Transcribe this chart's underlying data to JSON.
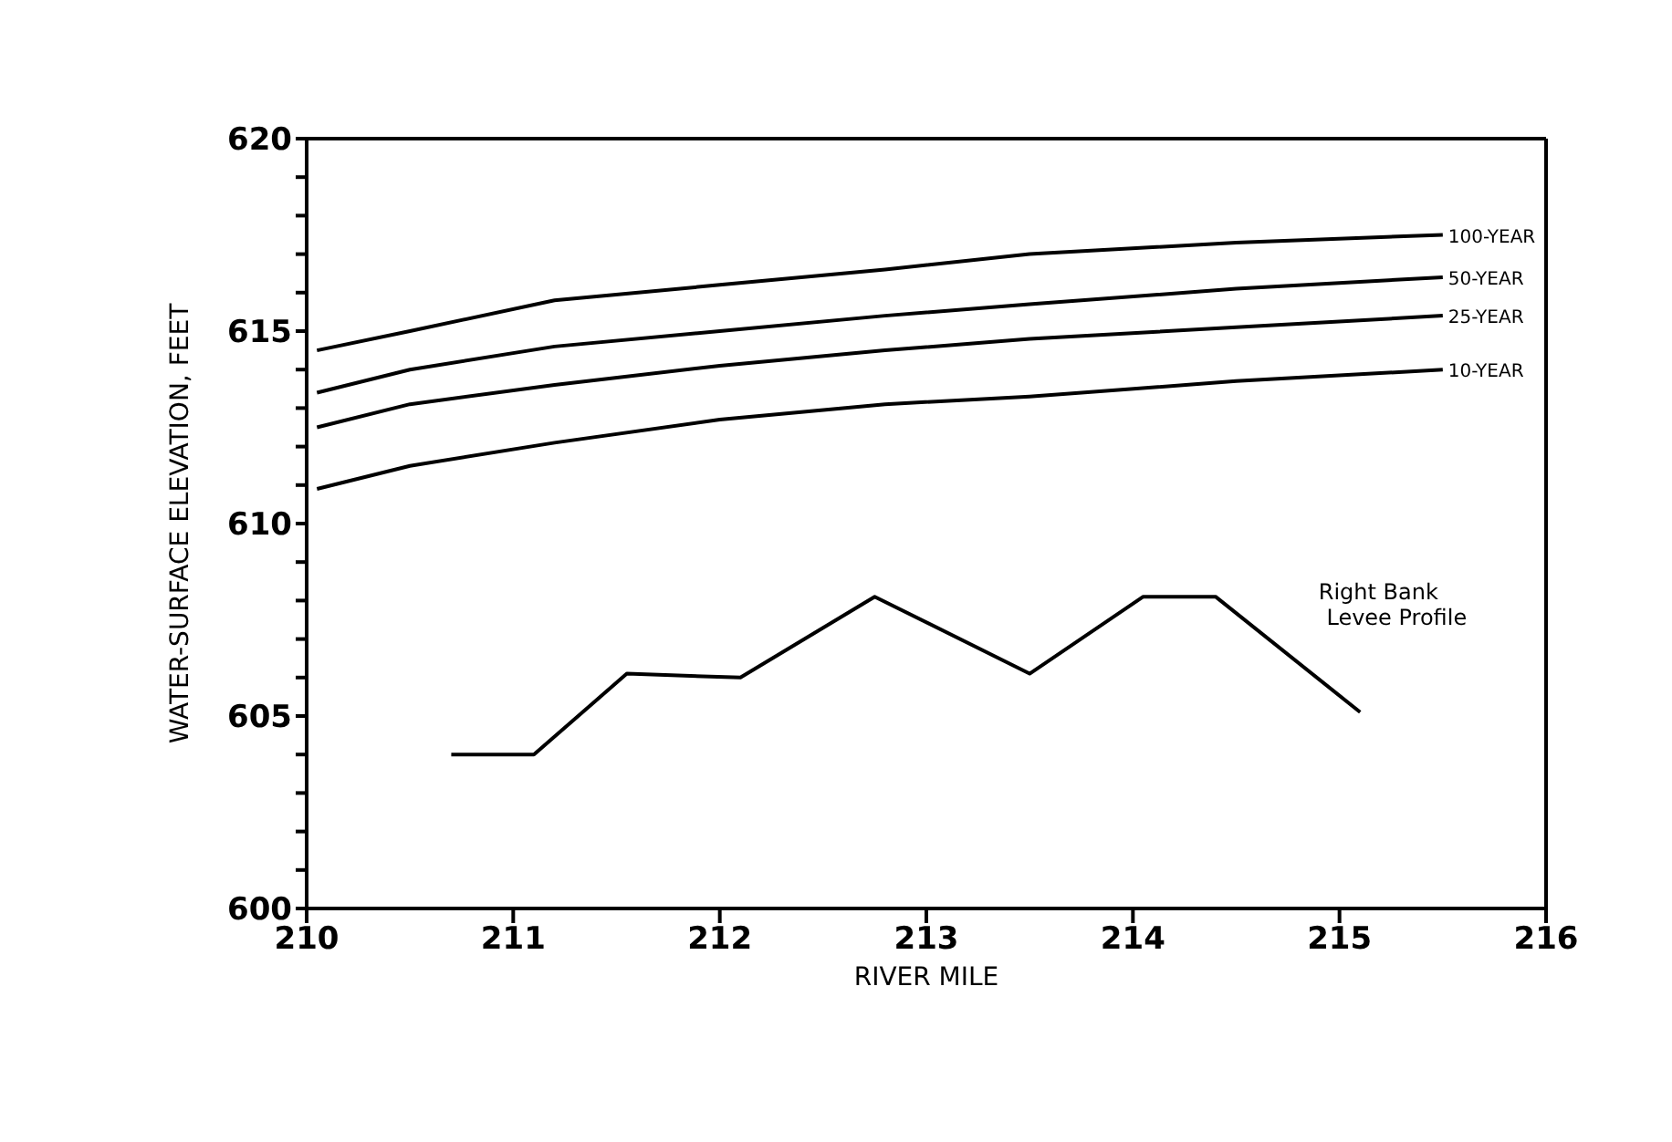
{
  "chart_data": {
    "type": "line",
    "xlabel": "RIVER MILE",
    "ylabel": "WATER-SURFACE ELEVATION, FEET",
    "xlim": [
      210,
      216
    ],
    "xticks": [
      210,
      211,
      212,
      213,
      214,
      215,
      216
    ],
    "ylim": [
      600,
      620
    ],
    "yticks": [
      600,
      {
        "value": 601,
        "label": null
      },
      {
        "value": 602,
        "label": null
      },
      {
        "value": 603,
        "label": null
      },
      {
        "value": 604,
        "label": null
      },
      605,
      {
        "value": 606,
        "label": null
      },
      {
        "value": 607,
        "label": null
      },
      {
        "value": 608,
        "label": null
      },
      {
        "value": 609,
        "label": null
      },
      610,
      {
        "value": 611,
        "label": null
      },
      {
        "value": 612,
        "label": null
      },
      {
        "value": 613,
        "label": null
      },
      {
        "value": 614,
        "label": null
      },
      615,
      {
        "value": 616,
        "label": null
      },
      {
        "value": 617,
        "label": null
      },
      {
        "value": 618,
        "label": null
      },
      {
        "value": 619,
        "label": null
      },
      620
    ],
    "marker": "none",
    "line_style": "solid",
    "series": [
      {
        "name": "100-YEAR",
        "color": "#000000",
        "x": [
          210.05,
          210.5,
          211.2,
          212,
          212.8,
          213.5,
          214.5,
          215.5
        ],
        "values": [
          614.5,
          615.0,
          615.8,
          616.2,
          616.6,
          617.0,
          617.3,
          617.5
        ]
      },
      {
        "name": "50-YEAR",
        "color": "#000000",
        "x": [
          210.05,
          210.5,
          211.2,
          212,
          212.8,
          213.5,
          214.5,
          215.5
        ],
        "values": [
          613.4,
          614.0,
          614.6,
          615.0,
          615.4,
          615.7,
          616.1,
          616.4
        ]
      },
      {
        "name": "25-YEAR",
        "color": "#000000",
        "x": [
          210.05,
          210.5,
          211.2,
          212,
          212.8,
          213.5,
          214.5,
          215.5
        ],
        "values": [
          612.5,
          613.1,
          613.6,
          614.1,
          614.5,
          614.8,
          615.1,
          615.4
        ]
      },
      {
        "name": "10-YEAR",
        "color": "#000000",
        "x": [
          210.05,
          210.5,
          211.2,
          212,
          212.8,
          213.5,
          214.5,
          215.5
        ],
        "values": [
          610.9,
          611.5,
          612.1,
          612.7,
          613.1,
          613.3,
          613.7,
          614.0
        ]
      },
      {
        "name": "Right Bank Levee Profile",
        "color": "#000000",
        "x": [
          210.7,
          211.1,
          211.55,
          212.1,
          212.75,
          213.5,
          214.05,
          214.4,
          215.1
        ],
        "values": [
          604,
          604,
          606.1,
          606,
          608.1,
          606.1,
          608.1,
          608.1,
          605.1
        ]
      }
    ]
  }
}
